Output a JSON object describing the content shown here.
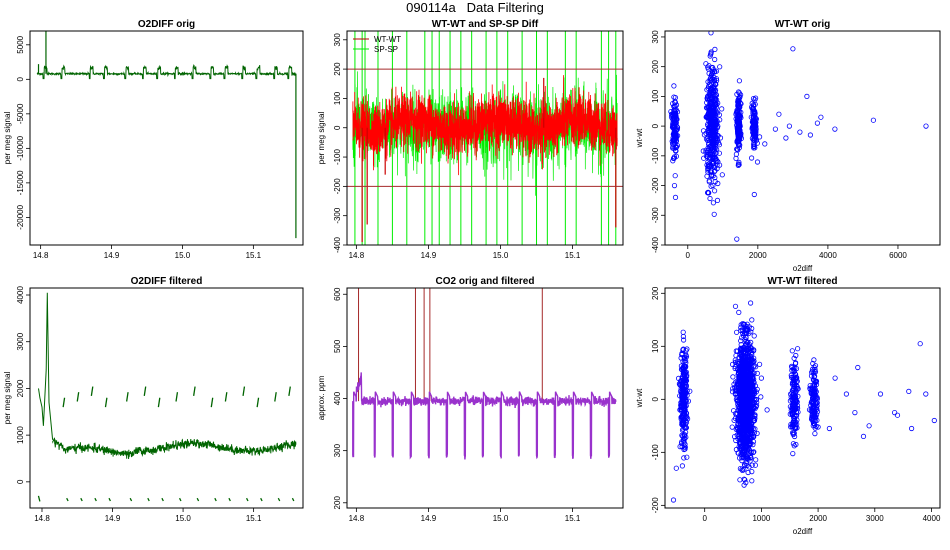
{
  "figure_title": "090114a   Data Filtering",
  "colors": {
    "o2": "#006400",
    "wtwt": "#ff0000",
    "wtwt_dark": "#bb0000",
    "spsp": "#00ee00",
    "co2": "#9932cc",
    "co2_spike": "#a52a2a",
    "scatter": "#0000ff",
    "hline": "#a52a2a"
  },
  "chart_data": [
    {
      "id": "o2diff_orig",
      "type": "line",
      "title": "O2DIFF orig",
      "xlabel": "",
      "ylabel": "per meg signal",
      "xlim": [
        14.785,
        15.17
      ],
      "ylim": [
        -24000,
        7000
      ],
      "xticks": [
        14.8,
        14.9,
        15.0,
        15.1
      ],
      "xtick_labels": [
        "14.8",
        "14.9",
        "15.0",
        "15.1"
      ],
      "yticks": [
        5000,
        0,
        -5000,
        -10000,
        -15000,
        -20000
      ],
      "ytick_labels": [
        "5000",
        "0",
        "-5000",
        "-10000",
        "-15000",
        "-20000"
      ],
      "series": [
        {
          "name": "O2DIFF",
          "color": "#006400",
          "baseline": 800,
          "noise": 160,
          "xrange": [
            14.795,
            15.16
          ],
          "steps": [
            14.805,
            14.83,
            14.87,
            14.89,
            14.92,
            14.945,
            14.965,
            14.99,
            15.015,
            15.04,
            15.06,
            15.085,
            15.105,
            15.13,
            15.15
          ],
          "spikes": [
            [
              14.797,
              2200
            ],
            [
              14.8075,
              7000
            ],
            [
              15.16,
              -23000
            ]
          ]
        }
      ]
    },
    {
      "id": "wtwt_spsp_diff",
      "type": "line",
      "title": "WT-WT and SP-SP Diff",
      "xlabel": "",
      "ylabel": "per meg signal",
      "xlim": [
        14.787,
        15.17
      ],
      "ylim": [
        -400,
        330
      ],
      "xticks": [
        14.8,
        14.9,
        15.0,
        15.1
      ],
      "xtick_labels": [
        "14.8",
        "14.9",
        "15.0",
        "15.1"
      ],
      "yticks": [
        300,
        200,
        100,
        0,
        -100,
        -200,
        -300,
        -400
      ],
      "ytick_labels": [
        "300",
        "200",
        "100",
        "0",
        "-100",
        "-200",
        "-300",
        "-400"
      ],
      "hlines": [
        200,
        -200
      ],
      "legend": {
        "position": "top-left",
        "entries": [
          {
            "label": "WT-WT",
            "color": "#bb0000"
          },
          {
            "label": "SP-SP",
            "color": "#00ee00"
          }
        ]
      },
      "series": [
        {
          "name": "SP-SP",
          "color": "#00ee00",
          "noise": 60,
          "vlines": [
            14.798,
            14.808,
            14.812,
            14.83,
            14.85,
            14.87,
            14.895,
            14.905,
            14.915,
            14.93,
            14.945,
            14.96,
            14.98,
            14.995,
            15.01,
            15.03,
            15.05,
            15.065,
            15.09,
            15.105,
            15.14,
            15.15,
            15.16
          ]
        },
        {
          "name": "WT-WT",
          "color": "#ff0000",
          "noise": 45,
          "spikes": [
            [
              14.808,
              -390
            ],
            [
              14.815,
              -330
            ],
            [
              14.84,
              -160
            ],
            [
              15.06,
              170
            ],
            [
              15.16,
              -340
            ]
          ]
        }
      ]
    },
    {
      "id": "wtwt_orig",
      "type": "scatter",
      "title": "WT-WT orig",
      "xlabel": "o2diff",
      "ylabel": "wt-wt",
      "xlim": [
        -650,
        7200
      ],
      "ylim": [
        -400,
        320
      ],
      "xticks": [
        0,
        2000,
        4000,
        6000
      ],
      "xtick_labels": [
        "0",
        "2000",
        "4000",
        "6000"
      ],
      "yticks": [
        300,
        200,
        100,
        0,
        -100,
        -200,
        -300,
        -400
      ],
      "ytick_labels": [
        "300",
        "200",
        "100",
        "0",
        "-100",
        "-200",
        "-300",
        "-400"
      ],
      "clusters": [
        {
          "cx": -380,
          "sx": 35,
          "sy": 55,
          "n": 130
        },
        {
          "cx": 700,
          "sx": 90,
          "sy": 95,
          "n": 420
        },
        {
          "cx": 1450,
          "sx": 30,
          "sy": 55,
          "n": 150
        },
        {
          "cx": 1900,
          "sx": 35,
          "sy": 40,
          "n": 110
        }
      ],
      "outliers": [
        [
          3400,
          100
        ],
        [
          3000,
          260
        ],
        [
          5300,
          20
        ],
        [
          6800,
          0
        ],
        [
          4200,
          -10
        ],
        [
          3800,
          30
        ],
        [
          2600,
          40
        ],
        [
          2900,
          0
        ],
        [
          3200,
          -20
        ],
        [
          3700,
          10
        ],
        [
          2800,
          -40
        ],
        [
          1900,
          -230
        ],
        [
          2200,
          -60
        ],
        [
          1400,
          -380
        ],
        [
          -350,
          -240
        ],
        [
          -380,
          -200
        ],
        [
          850,
          -250
        ],
        [
          2500,
          -10
        ],
        [
          3500,
          -30
        ]
      ]
    },
    {
      "id": "o2diff_filtered",
      "type": "line",
      "title": "O2DIFF filtered",
      "xlabel": "",
      "ylabel": "per meg signal",
      "xlim": [
        14.783,
        15.17
      ],
      "ylim": [
        -560,
        4150
      ],
      "xticks": [
        14.8,
        14.9,
        15.0,
        15.1
      ],
      "xtick_labels": [
        "14.8",
        "14.9",
        "15.0",
        "15.1"
      ],
      "yticks": [
        4000,
        3000,
        2000,
        1000,
        0
      ],
      "ytick_labels": [
        "4000",
        "3000",
        "2000",
        "1000",
        "0"
      ],
      "series": [
        {
          "name": "O2DIFF filtered",
          "color": "#006400",
          "noise": 45,
          "xrange": [
            14.81,
            15.16
          ],
          "early": [
            [
              14.795,
              2000
            ],
            [
              14.797,
              1800
            ],
            [
              14.8,
              1600
            ],
            [
              14.802,
              1200
            ],
            [
              14.806,
              2400
            ],
            [
              14.8075,
              4050
            ],
            [
              14.81,
              1700
            ],
            [
              14.815,
              900
            ]
          ],
          "segments_high": [
            14.83,
            14.85,
            14.87,
            14.89,
            14.92,
            14.945,
            14.965,
            14.99,
            15.015,
            15.04,
            15.06,
            15.085,
            15.105,
            15.13,
            15.15
          ],
          "high_level": 1700,
          "low_level": -350
        }
      ]
    },
    {
      "id": "co2_orig_filtered",
      "type": "line",
      "title": "CO2 orig and filtered",
      "xlabel": "",
      "ylabel": "approx. ppm",
      "xlim": [
        14.787,
        15.17
      ],
      "ylim": [
        190,
        612
      ],
      "xticks": [
        14.8,
        14.9,
        15.0,
        15.1
      ],
      "xtick_labels": [
        "14.8",
        "14.9",
        "15.0",
        "15.1"
      ],
      "yticks": [
        600,
        500,
        400,
        300,
        200
      ],
      "ytick_labels": [
        "600",
        "500",
        "400",
        "300",
        "200"
      ],
      "series": [
        {
          "name": "CO2 orig",
          "color": "#a52a2a",
          "spikes": [
            14.803,
            14.882,
            14.894,
            14.902,
            15.058
          ]
        },
        {
          "name": "CO2 filtered",
          "color": "#9932cc",
          "baseline": 395,
          "noise": 4,
          "dips": [
            14.795,
            14.825,
            14.85,
            14.875,
            14.9,
            14.925,
            14.95,
            14.975,
            15.0,
            15.025,
            15.05,
            15.075,
            15.1,
            15.125,
            15.15
          ],
          "dip_value": 290
        }
      ]
    },
    {
      "id": "wtwt_filtered",
      "type": "scatter",
      "title": "WT-WT filtered",
      "xlabel": "o2diff",
      "ylabel": "wt-wt",
      "xlim": [
        -700,
        4150
      ],
      "ylim": [
        -205,
        210
      ],
      "xticks": [
        0,
        1000,
        2000,
        3000,
        4000
      ],
      "xtick_labels": [
        "0",
        "1000",
        "2000",
        "3000",
        "4000"
      ],
      "yticks": [
        200,
        100,
        0,
        -100,
        -200
      ],
      "ytick_labels": [
        "200",
        "100",
        "0",
        "-100",
        "-200"
      ],
      "clusters": [
        {
          "cx": -370,
          "sx": 30,
          "sy": 45,
          "n": 260
        },
        {
          "cx": 720,
          "sx": 75,
          "sy": 55,
          "n": 1400
        },
        {
          "cx": 1580,
          "sx": 30,
          "sy": 40,
          "n": 160
        },
        {
          "cx": 1930,
          "sx": 30,
          "sy": 30,
          "n": 140
        }
      ],
      "outliers": [
        [
          3800,
          105
        ],
        [
          2700,
          60
        ],
        [
          3900,
          10
        ],
        [
          3600,
          15
        ],
        [
          4050,
          -40
        ],
        [
          3650,
          -55
        ],
        [
          3350,
          -25
        ],
        [
          2650,
          -25
        ],
        [
          2800,
          -70
        ],
        [
          2300,
          40
        ],
        [
          2200,
          -55
        ],
        [
          2500,
          10
        ],
        [
          2900,
          -50
        ],
        [
          3100,
          10
        ],
        [
          3400,
          -30
        ],
        [
          -550,
          -190
        ],
        [
          -500,
          -130
        ],
        [
          1000,
          40
        ],
        [
          1100,
          -20
        ]
      ]
    }
  ]
}
